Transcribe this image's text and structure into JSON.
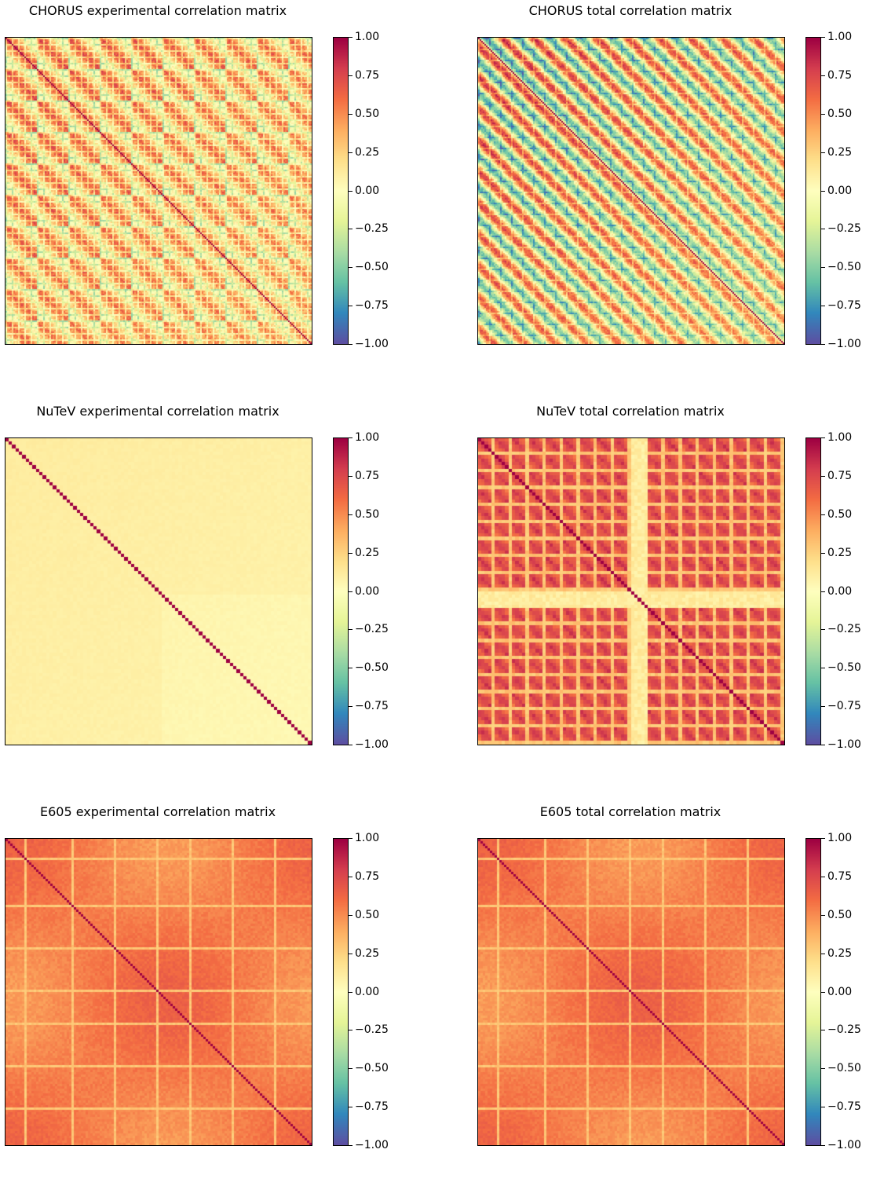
{
  "colorbar": {
    "colormap": "Spectral_r",
    "range": [
      -1.0,
      1.0
    ],
    "ticks": [
      "1.00",
      "0.75",
      "0.50",
      "0.25",
      "0.00",
      "−0.25",
      "−0.50",
      "−0.75",
      "−1.00"
    ]
  },
  "chart_data": [
    {
      "type": "heatmap",
      "id": "chorus-exp",
      "title": "CHORUS experimental correlation matrix",
      "pattern": "blockgrid",
      "matrix_size": "approx. 600 x 600",
      "diagonal": 1.0,
      "value_range": [
        -0.4,
        1.0
      ],
      "colorbar_range": [
        -1.0,
        1.0
      ]
    },
    {
      "type": "heatmap",
      "id": "chorus-total",
      "title": "CHORUS total correlation matrix",
      "pattern": "bands",
      "matrix_size": "approx. 600 x 600",
      "diagonal": 1.0,
      "value_range": [
        -0.4,
        1.0
      ],
      "colorbar_range": [
        -1.0,
        1.0
      ]
    },
    {
      "type": "heatmap",
      "id": "nutev-exp",
      "title": "NuTeV experimental correlation matrix",
      "pattern": "diagonal",
      "matrix_size": "approx. 90 x 90",
      "diagonal": 1.0,
      "off_diagonal_approx": 0.1,
      "colorbar_range": [
        -1.0,
        1.0
      ]
    },
    {
      "type": "heatmap",
      "id": "nutev-total",
      "title": "NuTeV total correlation matrix",
      "pattern": "blocks",
      "matrix_size": "approx. 90 x 90",
      "diagonal": 1.0,
      "value_range": [
        0.0,
        1.0
      ],
      "colorbar_range": [
        -1.0,
        1.0
      ]
    },
    {
      "type": "heatmap",
      "id": "e605-exp",
      "title": "E605 experimental correlation matrix",
      "pattern": "smooth",
      "matrix_size": "approx. 120 x 120",
      "diagonal": 1.0,
      "off_diagonal_approx": 0.55,
      "colorbar_range": [
        -1.0,
        1.0
      ]
    },
    {
      "type": "heatmap",
      "id": "e605-total",
      "title": "E605 total correlation matrix",
      "pattern": "smooth",
      "matrix_size": "approx. 120 x 120",
      "diagonal": 1.0,
      "off_diagonal_approx": 0.6,
      "colorbar_range": [
        -1.0,
        1.0
      ]
    }
  ]
}
